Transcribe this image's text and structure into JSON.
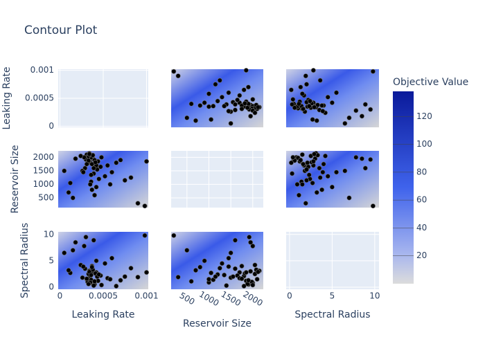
{
  "chart_data": {
    "type": "contour-matrix",
    "title": "Contour Plot",
    "dimensions": [
      {
        "name": "Leaking Rate",
        "lim": [
          -2e-05,
          0.00102
        ],
        "ticks": [
          0,
          0.0005,
          0.001
        ],
        "values": [
          0.00035,
          0.00038,
          0.00031,
          0.00042,
          0.00036,
          0.00029,
          0.00044,
          0.00033,
          0.0004,
          0.00037,
          0.00026,
          0.00047,
          0.00034,
          0.00039,
          0.00032,
          0.00041,
          0.00052,
          0.00036,
          0.0003,
          0.00043,
          0.00038,
          0.00035,
          0.00055,
          0.00028,
          0.00045,
          0.00037,
          0.00033,
          0.0006,
          0.0004,
          0.00034,
          0.00018,
          0.0007,
          0.00082,
          0.00012,
          5e-05,
          0.0009,
          0.00024,
          0.00065,
          0.00098,
          0.0001,
          0.00039,
          0.00036,
          0.00031,
          0.00048,
          0.00042,
          0.00027,
          0.00075,
          0.00015,
          0.00058,
          0.001
        ]
      },
      {
        "name": "Reservoir Size",
        "lim": [
          140,
          2240
        ],
        "ticks": [
          500,
          1000,
          1500,
          2000
        ],
        "values": [
          1800,
          1950,
          2100,
          1700,
          2000,
          1600,
          1850,
          2050,
          1900,
          1750,
          1500,
          1650,
          2150,
          1400,
          1980,
          1820,
          1300,
          1100,
          1920,
          1550,
          2080,
          1000,
          1700,
          2000,
          1200,
          800,
          1880,
          1450,
          600,
          2120,
          1950,
          1900,
          1250,
          1050,
          1500,
          300,
          2050,
          1800,
          200,
          700,
          1600,
          1350,
          1750,
          2000,
          900,
          1450,
          1150,
          500,
          1000,
          1850
        ]
      },
      {
        "name": "Spectral Radius",
        "lim": [
          -0.4,
          10.5
        ],
        "ticks": [
          0,
          5,
          10
        ],
        "values": [
          2.1,
          3.0,
          1.5,
          2.8,
          0.8,
          3.5,
          1.2,
          2.5,
          0.5,
          4.0,
          1.8,
          2.2,
          3.1,
          0.3,
          1.0,
          2.6,
          4.5,
          1.4,
          9.5,
          2.0,
          3.3,
          0.9,
          1.7,
          7.8,
          2.4,
          3.8,
          0.6,
          5.5,
          1.1,
          2.9,
          8.5,
          1.3,
          3.6,
          2.7,
          6.5,
          1.9,
          4.2,
          0.2,
          9.8,
          3.2,
          8.9,
          2.3,
          1.6,
          0.4,
          5.0,
          3.9,
          2.0,
          7.0,
          1.5,
          2.8
        ]
      }
    ],
    "colorbar": {
      "title": "Objective Value",
      "lim": [
        0,
        138
      ],
      "ticks": [
        20,
        40,
        60,
        80,
        100,
        120
      ]
    },
    "point_color": "#000000",
    "grid": true
  }
}
